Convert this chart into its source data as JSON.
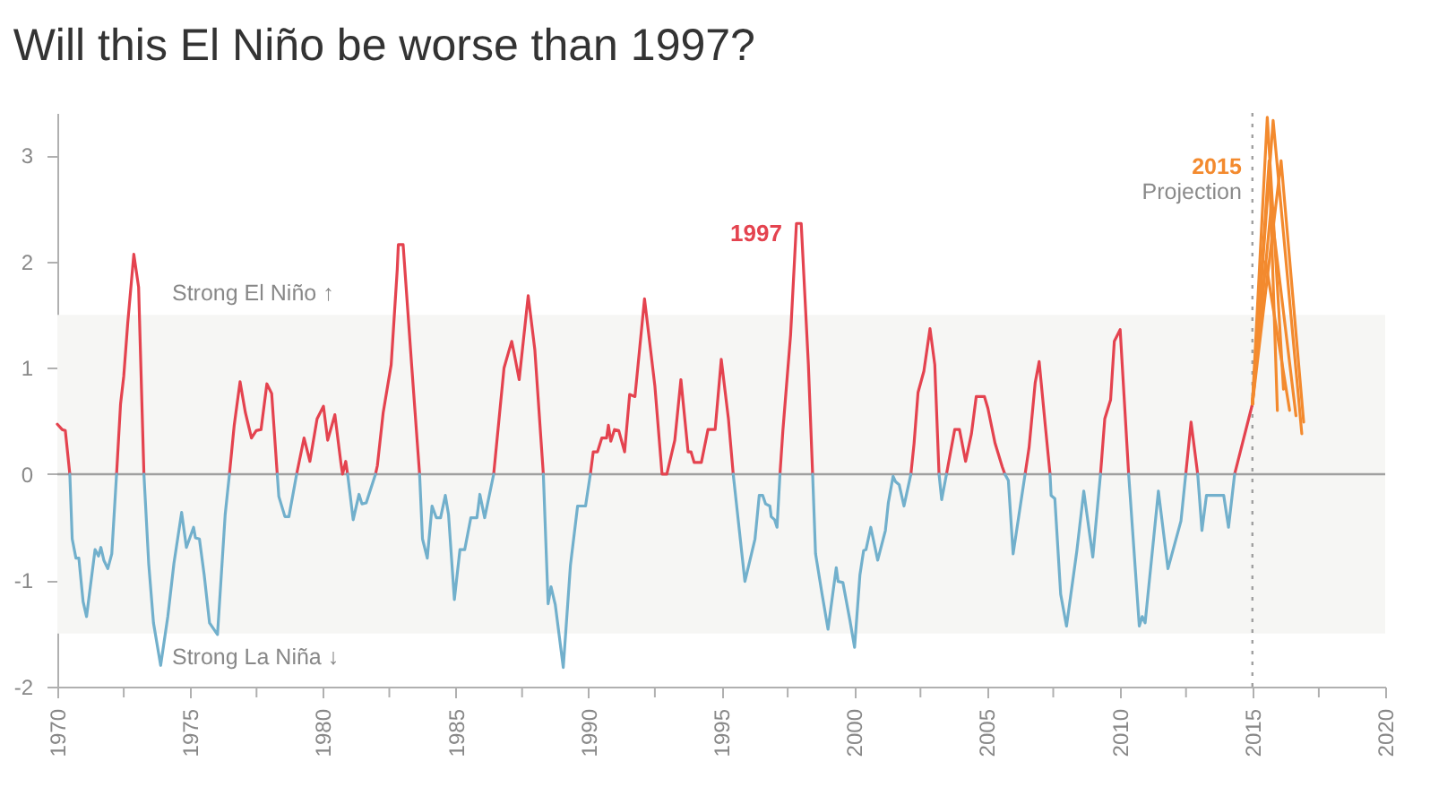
{
  "chart_data": {
    "type": "line",
    "title": "Will this El Niño be worse than 1997?",
    "x": [
      1970.0,
      1970.18,
      1970.3,
      1970.47,
      1970.56,
      1970.7,
      1970.81,
      1970.97,
      1971.1,
      1971.42,
      1971.55,
      1971.64,
      1971.75,
      1971.9,
      1972.05,
      1972.23,
      1972.38,
      1972.5,
      1972.65,
      1972.88,
      1973.06,
      1973.26,
      1973.44,
      1973.62,
      1973.89,
      1974.16,
      1974.39,
      1974.68,
      1974.86,
      1975.13,
      1975.2,
      1975.35,
      1975.53,
      1975.73,
      1976.03,
      1976.32,
      1976.48,
      1976.66,
      1976.88,
      1977.08,
      1977.31,
      1977.49,
      1977.67,
      1977.89,
      1978.07,
      1978.28,
      1978.34,
      1978.57,
      1978.72,
      1979.01,
      1979.29,
      1979.51,
      1979.78,
      1980.02,
      1980.18,
      1980.45,
      1980.68,
      1980.74,
      1980.86,
      1980.93,
      1981.14,
      1981.36,
      1981.47,
      1981.63,
      1981.98,
      1982.05,
      1982.27,
      1982.57,
      1982.8,
      1982.84,
      1983.02,
      1983.34,
      1983.64,
      1983.75,
      1983.93,
      1984.11,
      1984.27,
      1984.43,
      1984.61,
      1984.73,
      1984.95,
      1985.16,
      1985.34,
      1985.57,
      1985.8,
      1985.91,
      1986.09,
      1986.43,
      1986.82,
      1986.98,
      1987.11,
      1987.2,
      1987.39,
      1987.73,
      1987.98,
      1988.3,
      1988.48,
      1988.59,
      1988.75,
      1989.05,
      1989.32,
      1989.59,
      1989.89,
      1990.07,
      1990.18,
      1990.34,
      1990.5,
      1990.68,
      1990.75,
      1990.84,
      1990.98,
      1991.14,
      1991.36,
      1991.55,
      1991.75,
      1992.11,
      1992.5,
      1992.77,
      1992.95,
      1993.25,
      1993.48,
      1993.75,
      1993.86,
      1993.98,
      1994.25,
      1994.5,
      1994.77,
      1995.0,
      1995.27,
      1995.45,
      1995.89,
      1996.27,
      1996.43,
      1996.56,
      1996.67,
      1996.83,
      1996.88,
      1997.01,
      1997.1,
      1997.21,
      1997.32,
      1997.61,
      1997.83,
      1998.01,
      1998.28,
      1998.44,
      1998.55,
      1998.79,
      1999.02,
      1999.33,
      1999.4,
      1999.58,
      1999.84,
      2000.02,
      2000.22,
      2000.36,
      2000.45,
      2000.63,
      2000.89,
      2001.18,
      2001.29,
      2001.47,
      2001.56,
      2001.7,
      2001.88,
      2002.14,
      2002.26,
      2002.41,
      2002.63,
      2002.86,
      2003.04,
      2003.2,
      2003.3,
      2003.48,
      2003.79,
      2003.97,
      2004.2,
      2004.42,
      2004.6,
      2004.91,
      2005.04,
      2005.31,
      2005.58,
      2005.68,
      2005.81,
      2005.99,
      2006.26,
      2006.44,
      2006.59,
      2006.82,
      2006.97,
      2007.2,
      2007.38,
      2007.42,
      2007.56,
      2007.78,
      2008.0,
      2008.39,
      2008.65,
      2008.99,
      2009.28,
      2009.44,
      2009.66,
      2009.8,
      2010.02,
      2010.34,
      2010.74,
      2010.85,
      2010.96,
      2011.46,
      2011.82,
      2012.31,
      2012.49,
      2012.69,
      2012.94,
      2013.1,
      2013.27,
      2013.65,
      2013.92,
      2014.1,
      2014.33,
      2015.0
    ],
    "series": [
      {
        "color": "#e4434f",
        "values": [
          0.47,
          0.42,
          0.41,
          0,
          null,
          null,
          null,
          null,
          null,
          null,
          null,
          null,
          null,
          null,
          null,
          0,
          0.66,
          0.92,
          1.42,
          2.07,
          1.76,
          0,
          null,
          null,
          null,
          null,
          null,
          null,
          null,
          null,
          null,
          null,
          null,
          null,
          null,
          null,
          0,
          0.46,
          0.87,
          0.58,
          0.34,
          0.41,
          0.42,
          0.85,
          0.76,
          0,
          null,
          null,
          null,
          0,
          0.34,
          0.12,
          0.52,
          0.64,
          0.32,
          0.56,
          0.1,
          0,
          0.12,
          0,
          null,
          null,
          null,
          null,
          0,
          0.08,
          0.58,
          1.03,
          1.93,
          2.16,
          2.16,
          1.03,
          0,
          null,
          null,
          null,
          null,
          null,
          null,
          null,
          null,
          null,
          null,
          null,
          null,
          null,
          null,
          0,
          1,
          1.14,
          1.25,
          1.14,
          0.89,
          1.68,
          1.17,
          0,
          null,
          null,
          null,
          null,
          null,
          null,
          null,
          0,
          0.21,
          0.21,
          0.34,
          0.34,
          0.46,
          0.31,
          0.42,
          0.41,
          0.21,
          0.75,
          0.73,
          1.65,
          0.83,
          0,
          0,
          0.32,
          0.89,
          0.21,
          0.21,
          0.11,
          0.11,
          0.42,
          0.42,
          1.08,
          0.52,
          0,
          null,
          null,
          null,
          null,
          null,
          null,
          null,
          null,
          null,
          0,
          0.41,
          1.31,
          2.36,
          2.36,
          1.03,
          0,
          null,
          null,
          null,
          null,
          null,
          null,
          null,
          null,
          null,
          null,
          null,
          null,
          null,
          null,
          null,
          null,
          null,
          null,
          null,
          0,
          0.29,
          0.77,
          0.97,
          1.37,
          1.03,
          0,
          null,
          0,
          0.42,
          0.42,
          0.12,
          0.38,
          0.73,
          0.73,
          0.62,
          0.29,
          0.07,
          0,
          null,
          null,
          null,
          0,
          0.25,
          0.86,
          1.06,
          0.46,
          0,
          null,
          null,
          null,
          null,
          null,
          null,
          null,
          0,
          0.52,
          0.7,
          1.25,
          1.36,
          0,
          null,
          null,
          null,
          null,
          null,
          null,
          0,
          0.49,
          0,
          null,
          null,
          null,
          null,
          null,
          0,
          0.66
        ]
      },
      {
        "color": "#72b0cc",
        "values": [
          null,
          null,
          null,
          0,
          -0.61,
          -0.79,
          -0.79,
          -1.2,
          -1.34,
          -0.71,
          -0.77,
          -0.69,
          -0.81,
          -0.89,
          -0.75,
          0,
          null,
          null,
          null,
          null,
          null,
          0,
          -0.84,
          -1.4,
          -1.8,
          -1.34,
          -0.84,
          -0.36,
          -0.69,
          -0.5,
          -0.6,
          -0.61,
          -0.95,
          -1.4,
          -1.51,
          -0.38,
          0,
          null,
          null,
          null,
          null,
          null,
          null,
          null,
          null,
          0,
          -0.21,
          -0.4,
          -0.4,
          0,
          null,
          null,
          null,
          null,
          null,
          null,
          null,
          null,
          null,
          0,
          -0.43,
          -0.19,
          -0.28,
          -0.27,
          0,
          null,
          null,
          null,
          null,
          null,
          null,
          null,
          0,
          -0.61,
          -0.79,
          -0.3,
          -0.41,
          -0.41,
          -0.2,
          -0.38,
          -1.18,
          -0.71,
          -0.71,
          -0.41,
          -0.41,
          -0.19,
          -0.41,
          0,
          null,
          null,
          null,
          null,
          null,
          null,
          null,
          0,
          -1.22,
          -1.06,
          -1.23,
          -1.82,
          -0.86,
          -0.3,
          -0.3,
          0,
          null,
          null,
          null,
          null,
          null,
          null,
          null,
          null,
          null,
          null,
          null,
          null,
          null,
          null,
          null,
          null,
          null,
          null,
          null,
          null,
          null,
          null,
          null,
          null,
          null,
          0,
          -1.01,
          -0.61,
          -0.2,
          -0.2,
          -0.28,
          -0.3,
          -0.4,
          -0.43,
          -0.5,
          0,
          null,
          null,
          null,
          null,
          null,
          0,
          -0.75,
          -1.12,
          -1.46,
          -0.88,
          -1.01,
          -1.02,
          -1.37,
          -1.63,
          -0.95,
          -0.72,
          -0.71,
          -0.5,
          -0.81,
          -0.53,
          -0.27,
          -0.02,
          -0.07,
          -0.1,
          -0.3,
          0,
          null,
          null,
          null,
          null,
          null,
          0,
          -0.24,
          0,
          null,
          null,
          null,
          null,
          null,
          null,
          null,
          null,
          null,
          0,
          -0.06,
          -0.75,
          -0.3,
          0,
          null,
          null,
          null,
          null,
          0,
          -0.2,
          -0.23,
          -1.13,
          -1.43,
          -0.72,
          -0.16,
          -0.78,
          0,
          null,
          null,
          null,
          null,
          0,
          -1.43,
          -1.34,
          -1.4,
          -0.16,
          -0.89,
          -0.44,
          0,
          null,
          0,
          -0.53,
          -0.2,
          -0.2,
          -0.2,
          -0.5,
          0,
          null
        ]
      },
      {
        "name": "2015",
        "color": "#f38a2e",
        "x": [
          2015.0,
          2015.56,
          2016.17
        ],
        "values": [
          0.66,
          3.36,
          0.8
        ]
      },
      {
        "color": "#f38a2e",
        "x": [
          2015.0,
          2015.78,
          2016.86
        ],
        "values": [
          0.66,
          3.33,
          0.38
        ]
      },
      {
        "color": "#f38a2e",
        "x": [
          2015.0,
          2015.63,
          2015.94
        ],
        "values": [
          0.66,
          2.95,
          0.6
        ]
      },
      {
        "color": "#f38a2e",
        "x": [
          2015.0,
          2016.08,
          2016.93
        ],
        "values": [
          0.66,
          2.95,
          0.49
        ]
      },
      {
        "color": "#f38a2e",
        "x": [
          2015.0,
          2015.7,
          2016.64
        ],
        "values": [
          0.66,
          2.5,
          0.55
        ]
      },
      {
        "color": "#f38a2e",
        "x": [
          2015.0,
          2015.5,
          2016.4
        ],
        "values": [
          0.66,
          2.0,
          0.6
        ]
      }
    ],
    "xlim": [
      1970,
      2020
    ],
    "xticks": [
      1970,
      {
        "value": 1972.5,
        "label": null
      },
      1975,
      {
        "value": 1977.5,
        "label": null
      },
      1980,
      {
        "value": 1982.5,
        "label": null
      },
      1985,
      {
        "value": 1987.5,
        "label": null
      },
      1990,
      {
        "value": 1992.5,
        "label": null
      },
      1995,
      {
        "value": 1997.5,
        "label": null
      },
      2000,
      {
        "value": 2002.5,
        "label": null
      },
      2005,
      {
        "value": 2007.5,
        "label": null
      },
      2010,
      {
        "value": 2012.5,
        "label": null
      },
      2015,
      {
        "value": 2017.5,
        "label": null
      },
      2020
    ],
    "ylim": [
      -2,
      3.4
    ],
    "yticks": [
      -2,
      -1,
      0,
      1,
      2,
      3
    ],
    "bands": [
      {
        "axis": "y",
        "from": -1.5,
        "to": 1.5,
        "color": "#f6f6f4"
      }
    ],
    "ref_lines": [
      {
        "axis": "y",
        "value": 0,
        "color": "#a0a0a0",
        "line_style": "solid"
      },
      {
        "axis": "x",
        "value": 2015,
        "label": "Projection",
        "color": "#a0a0a0",
        "line_style": "dotted"
      }
    ],
    "annotations": [
      {
        "text": "1997",
        "x": 1997.83,
        "y": 2.36
      },
      "Strong El Niño ↑",
      "Strong La Niña ↓"
    ]
  }
}
